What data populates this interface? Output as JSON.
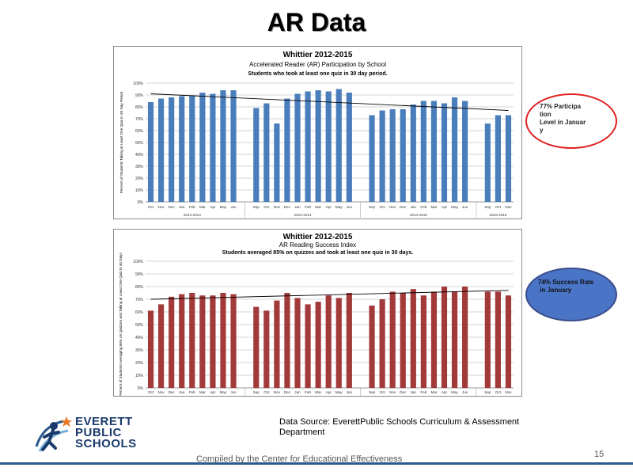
{
  "page": {
    "title": "AR Data",
    "source": "Data Source: EverettPublic Schools Curriculum & Assessment Department",
    "compiled": "Compiled by the Center for Educational Effectiveness",
    "page_number": "15",
    "logo": {
      "line1": "EVERETT",
      "line2": "PUBLIC",
      "line3": "SCHOOLS",
      "icon": "runner-star-icon"
    },
    "accent_color": "#2b5a8c"
  },
  "callouts": [
    {
      "text": "77% Participa\ntion\nLevel in Januar\ny",
      "border": "#e02020",
      "fill": "#ffffff"
    },
    {
      "text": "74% Success Rate\n in January",
      "border": "#3a4c8a",
      "fill": "#4a74c6"
    }
  ],
  "chart_data": [
    {
      "type": "bar",
      "title": "Whittier 2012-2015",
      "subtitle": "Accelerated Reader (AR) Participation by School",
      "subtitle2": "Students who took at least one quiz in 30 day period.",
      "ylabel": "Percent of Students Taking at Least One Quiz in 30 Day Period",
      "ylim": [
        0,
        100
      ],
      "yticks": [
        "0%",
        "10%",
        "20%",
        "30%",
        "40%",
        "50%",
        "60%",
        "70%",
        "80%",
        "90%",
        "100%"
      ],
      "color": "#4a7ebb",
      "groups": [
        {
          "label": "2012-2013",
          "categories": [
            "Oct",
            "Nov",
            "Dec",
            "Jan",
            "Feb",
            "Mar",
            "Apr",
            "May",
            "Jun"
          ],
          "values": [
            84,
            87,
            88,
            89,
            89,
            92,
            91,
            94,
            94
          ]
        },
        {
          "label": "2013-2014",
          "categories": [
            "Sep",
            "Oct",
            "Nov",
            "Dec",
            "Jan",
            "Feb",
            "Mar",
            "Apr",
            "May",
            "Jun"
          ],
          "values": [
            79,
            83,
            66,
            87,
            91,
            93,
            94,
            93,
            95,
            92
          ]
        },
        {
          "label": "2014-2015",
          "categories": [
            "Sep",
            "Oct",
            "Nov",
            "Dec",
            "Jan",
            "Feb",
            "Mar",
            "Apr",
            "May",
            "Jun"
          ],
          "values": [
            73,
            77,
            78,
            78,
            82,
            85,
            85,
            83,
            88,
            85
          ]
        },
        {
          "label": "2015-2016",
          "categories": [
            "Sep",
            "Oct",
            "Nov"
          ],
          "values": [
            66,
            73,
            73
          ]
        }
      ],
      "trend": [
        91,
        77
      ],
      "grid": true
    },
    {
      "type": "bar",
      "title": "Whittier 2012-2015",
      "subtitle": "AR Reading Success Index",
      "subtitle2": "Students averaged 85% on quizzes and took at least one quiz in 30 days.",
      "ylabel": "Percent of Students Averaging 85% on Quizzes and Taking at Least One Quiz in 30 Days",
      "ylim": [
        0,
        100
      ],
      "yticks": [
        "0%",
        "10%",
        "20%",
        "30%",
        "40%",
        "50%",
        "60%",
        "70%",
        "80%",
        "90%",
        "100%"
      ],
      "color": "#a33a3a",
      "groups": [
        {
          "label": "2012-2013",
          "categories": [
            "Oct",
            "Nov",
            "Dec",
            "Jan",
            "Feb",
            "Mar",
            "Apr",
            "May",
            "Jun"
          ],
          "values": [
            61,
            66,
            72,
            74,
            75,
            73,
            73,
            75,
            74
          ]
        },
        {
          "label": "2013-2014",
          "categories": [
            "Sep",
            "Oct",
            "Nov",
            "Dec",
            "Jan",
            "Feb",
            "Mar",
            "Apr",
            "May",
            "Jun"
          ],
          "values": [
            64,
            61,
            69,
            75,
            71,
            66,
            68,
            73,
            71,
            75
          ]
        },
        {
          "label": "2014-2015",
          "categories": [
            "Sep",
            "Oct",
            "Nov",
            "Dec",
            "Jan",
            "Feb",
            "Mar",
            "Apr",
            "May",
            "Jun"
          ],
          "values": [
            65,
            70,
            76,
            75,
            78,
            73,
            76,
            80,
            76,
            80
          ]
        },
        {
          "label": "2015-2016",
          "categories": [
            "Sep",
            "Oct",
            "Nov"
          ],
          "values": [
            76,
            76,
            73
          ]
        }
      ],
      "trend": [
        70,
        77
      ],
      "grid": true
    }
  ]
}
